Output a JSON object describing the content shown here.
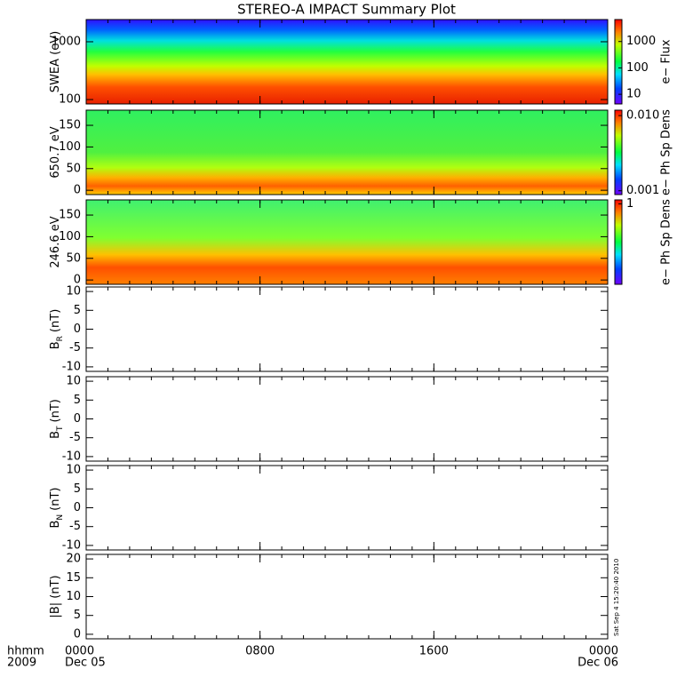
{
  "chart_data": {
    "type": "multipanel",
    "title": "STEREO-A IMPACT Summary Plot",
    "xlabel": "hhmm",
    "xlabel2": "2009",
    "xlim": [
      0,
      24
    ],
    "xticks": [
      {
        "value": 0,
        "label": "0000"
      },
      {
        "value": 8,
        "label": "0800"
      },
      {
        "value": 16,
        "label": "1600"
      },
      {
        "value": 24,
        "label": "0000"
      }
    ],
    "xtick_dates": [
      "Dec 05",
      null,
      null,
      "Dec 06"
    ],
    "timestamp": "Sat Sep  4 15:20:40 2010",
    "panels": [
      {
        "type": "heatmap",
        "ylabel": "SWEA (eV)",
        "log": true,
        "ylim": [
          84,
          2420
        ],
        "yticks": [
          100,
          1000
        ],
        "colorbar": {
          "label": "e− Flux",
          "log": true,
          "lim": [
            4.3,
            6800
          ],
          "ticks": [
            10,
            100,
            1000
          ]
        }
      },
      {
        "type": "heatmap",
        "ylabel": "650.7 eV",
        "ylim": [
          -10,
          185
        ],
        "yticks": [
          0,
          50,
          100,
          150
        ],
        "colorbar": {
          "label": "e− Ph Sp Dens",
          "log": true,
          "lim": [
            0.00089,
            0.0118
          ],
          "ticks": [
            {
              "value": 0.001,
              "label": "0.001"
            },
            {
              "value": 0.01,
              "label": "0.010"
            }
          ]
        }
      },
      {
        "type": "heatmap",
        "ylabel": "246.6 eV",
        "ylim": [
          -10,
          185
        ],
        "yticks": [
          0,
          50,
          100,
          150
        ],
        "colorbar": {
          "label": "e− Ph Sp Dens",
          "log": false,
          "lim": [
            0,
            1.05
          ],
          "ticks": [
            1
          ]
        }
      },
      {
        "type": "line",
        "ylabel": "B",
        "ylabel_sub": "R",
        "ylabel_unit": "(nT)",
        "ylim": [
          -11.2,
          11.2
        ],
        "yticks": [
          -10,
          -5,
          0,
          5,
          10
        ]
      },
      {
        "type": "line",
        "ylabel": "B",
        "ylabel_sub": "T",
        "ylabel_unit": "(nT)",
        "ylim": [
          -11.2,
          11.2
        ],
        "yticks": [
          -10,
          -5,
          0,
          5,
          10
        ]
      },
      {
        "type": "line",
        "ylabel": "B",
        "ylabel_sub": "N",
        "ylabel_unit": "(nT)",
        "ylim": [
          -11.2,
          11.2
        ],
        "yticks": [
          -10,
          -5,
          0,
          5,
          10
        ]
      },
      {
        "type": "line",
        "ylabel": "|B| (nT)",
        "ylim": [
          -1.2,
          21.2
        ],
        "yticks": [
          0,
          5,
          10,
          15,
          20
        ]
      }
    ]
  }
}
